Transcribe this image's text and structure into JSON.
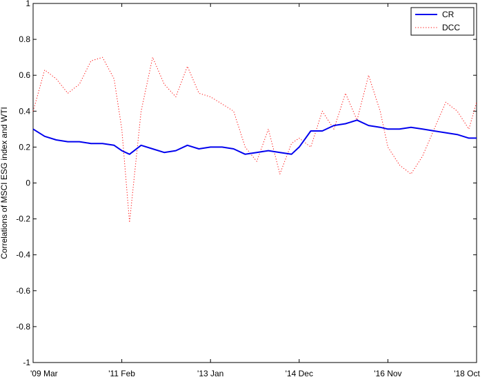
{
  "chart_data": {
    "type": "line",
    "title": "",
    "xlabel": "",
    "ylabel": "Correlations of MSCI ESG index and WTI",
    "xlim": [
      "2009-03",
      "2018-10"
    ],
    "ylim": [
      -1,
      1
    ],
    "yticks": [
      "-1",
      "-0.8",
      "-0.6",
      "-0.4",
      "-0.2",
      "0",
      "0.2",
      "0.4",
      "0.6",
      "0.8",
      "1"
    ],
    "xticks": [
      "'09 Mar",
      "'11 Feb",
      "'13 Jan",
      "'14 Dec",
      "'16 Nov",
      "'18 Oct"
    ],
    "grid": false,
    "legend": "top-right",
    "x": [
      "2009-03",
      "2009-06",
      "2009-09",
      "2009-12",
      "2010-03",
      "2010-06",
      "2010-09",
      "2010-12",
      "2011-02",
      "2011-04",
      "2011-07",
      "2011-10",
      "2012-01",
      "2012-04",
      "2012-07",
      "2012-10",
      "2013-01",
      "2013-04",
      "2013-07",
      "2013-10",
      "2014-01",
      "2014-04",
      "2014-07",
      "2014-10",
      "2014-12",
      "2015-03",
      "2015-06",
      "2015-09",
      "2015-12",
      "2016-03",
      "2016-06",
      "2016-09",
      "2016-11",
      "2017-02",
      "2017-05",
      "2017-08",
      "2017-11",
      "2018-02",
      "2018-05",
      "2018-08",
      "2018-10"
    ],
    "series": [
      {
        "name": "CR",
        "color": "#0000ee",
        "style": "solid",
        "values": [
          0.3,
          0.26,
          0.24,
          0.23,
          0.23,
          0.22,
          0.22,
          0.21,
          0.18,
          0.16,
          0.21,
          0.19,
          0.17,
          0.18,
          0.21,
          0.19,
          0.2,
          0.2,
          0.19,
          0.16,
          0.17,
          0.18,
          0.17,
          0.16,
          0.2,
          0.29,
          0.29,
          0.32,
          0.33,
          0.35,
          0.32,
          0.31,
          0.3,
          0.3,
          0.31,
          0.3,
          0.29,
          0.28,
          0.27,
          0.25,
          0.25
        ]
      },
      {
        "name": "DCC",
        "color": "#ff0000",
        "style": "dotted",
        "values": [
          0.4,
          0.63,
          0.58,
          0.5,
          0.55,
          0.68,
          0.7,
          0.58,
          0.3,
          -0.22,
          0.4,
          0.7,
          0.55,
          0.48,
          0.65,
          0.5,
          0.48,
          0.44,
          0.4,
          0.2,
          0.12,
          0.3,
          0.05,
          0.22,
          0.25,
          0.2,
          0.4,
          0.3,
          0.5,
          0.35,
          0.6,
          0.4,
          0.2,
          0.1,
          0.05,
          0.15,
          0.3,
          0.45,
          0.4,
          0.3,
          0.45
        ]
      }
    ]
  }
}
